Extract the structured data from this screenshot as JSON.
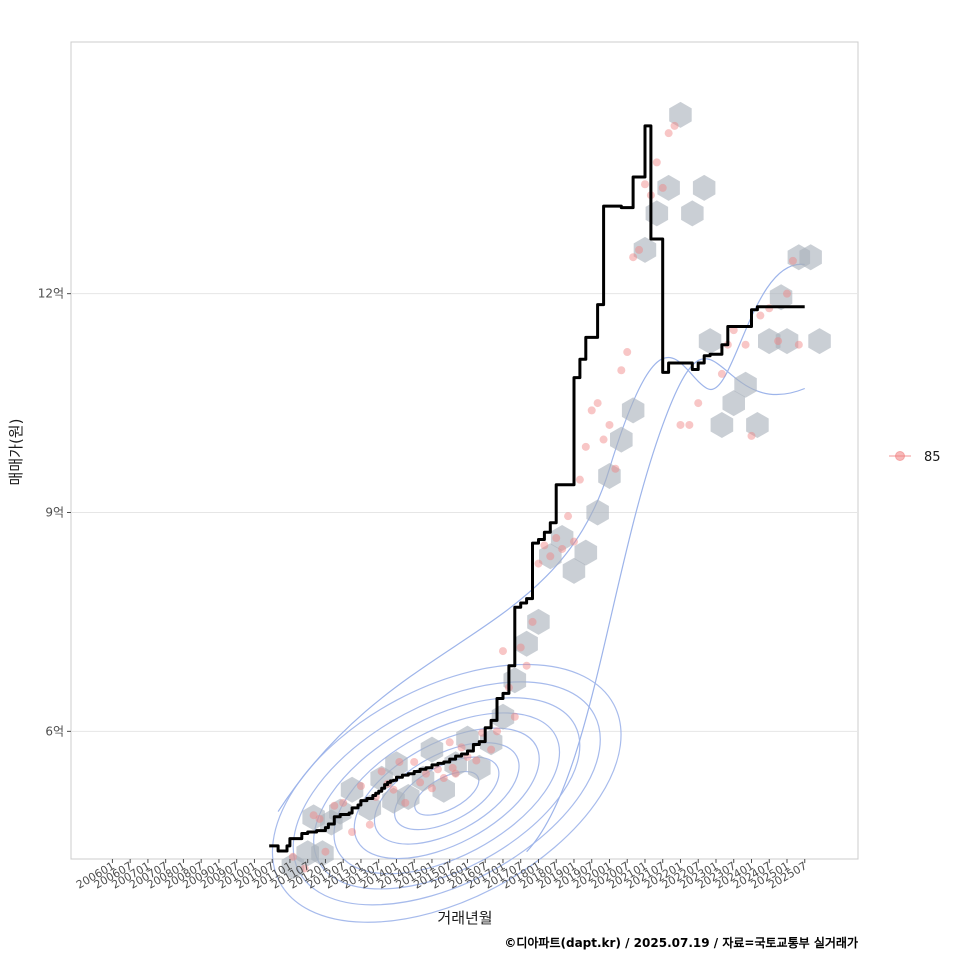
{
  "chart_data": {
    "type": "line",
    "xlabel": "거래년월",
    "ylabel": "매매가(원)",
    "caption": "©디아파트(dapt.kr) / 2025.07.19 / 자료=국토교통부 실거래가",
    "x_ticks": [
      "200601",
      "200607",
      "200701",
      "200707",
      "200801",
      "200807",
      "200901",
      "200907",
      "201001",
      "201007",
      "201101",
      "201107",
      "201201",
      "201207",
      "201301",
      "201307",
      "201401",
      "201407",
      "201501",
      "201507",
      "201601",
      "201607",
      "201701",
      "201707",
      "201801",
      "201807",
      "201901",
      "201907",
      "202001",
      "202007",
      "202101",
      "202107",
      "202201",
      "202207",
      "202301",
      "202307",
      "202401",
      "202407",
      "202501",
      "202507"
    ],
    "y_ticks": [
      {
        "value": 6.0,
        "label": "6억"
      },
      {
        "value": 9.0,
        "label": "9억"
      },
      {
        "value": 12.0,
        "label": "12억"
      }
    ],
    "xlim": [
      "200411",
      "202701"
    ],
    "ylim": [
      4.25,
      15.45
    ],
    "grid": true,
    "legend": {
      "position": "right",
      "entries": [
        {
          "label": "85",
          "color": "#f08080"
        }
      ]
    },
    "colors": {
      "line": "#000000",
      "points": "#f08080",
      "hex": "#a9b1bb",
      "contour": "#9db4ea",
      "grid": "#e6e6e6",
      "panel_border": "#cccccc"
    },
    "series": [
      {
        "kind": "moving-average-line",
        "x": [
          "201006",
          "201007",
          "201008",
          "201009",
          "201010",
          "201011",
          "201012",
          "201101",
          "201102",
          "201103",
          "201104",
          "201105",
          "201106",
          "201107",
          "201108",
          "201109",
          "201110",
          "201111",
          "201112",
          "201201",
          "201202",
          "201203",
          "201204",
          "201205",
          "201206",
          "201207",
          "201208",
          "201209",
          "201210",
          "201211",
          "201212",
          "201301",
          "201302",
          "201303",
          "201304",
          "201305",
          "201306",
          "201307",
          "201308",
          "201309",
          "201310",
          "201311",
          "201312",
          "201401",
          "201403",
          "201405",
          "201407",
          "201409",
          "201411",
          "201501",
          "201503",
          "201505",
          "201507",
          "201509",
          "201511",
          "201601",
          "201603",
          "201605",
          "201607",
          "201609",
          "201611",
          "201701",
          "201703",
          "201705",
          "201707",
          "201709",
          "201711",
          "201801",
          "201803",
          "201805",
          "201807",
          "201809",
          "201811",
          "201901",
          "201903",
          "201905",
          "201907",
          "201909",
          "201911",
          "202001",
          "202003",
          "202005",
          "202007",
          "202009",
          "202011",
          "202101",
          "202103",
          "202105",
          "202107",
          "202109",
          "202111",
          "202201",
          "202203",
          "202205",
          "202207",
          "202209",
          "202211",
          "202301",
          "202303",
          "202305",
          "202307",
          "202309",
          "202311",
          "202401",
          "202403",
          "202405",
          "202407",
          "202409",
          "202411",
          "202501",
          "202503",
          "202505",
          "202507"
        ],
        "values": [
          4.43,
          4.43,
          4.43,
          4.36,
          4.36,
          4.36,
          4.43,
          4.53,
          4.53,
          4.53,
          4.53,
          4.6,
          4.6,
          4.62,
          4.62,
          4.62,
          4.64,
          4.64,
          4.64,
          4.68,
          4.73,
          4.73,
          4.83,
          4.83,
          4.86,
          4.86,
          4.86,
          4.88,
          4.95,
          4.95,
          4.99,
          5.05,
          5.05,
          5.08,
          5.08,
          5.12,
          5.15,
          5.18,
          5.22,
          5.27,
          5.3,
          5.32,
          5.33,
          5.37,
          5.4,
          5.42,
          5.45,
          5.48,
          5.5,
          5.54,
          5.56,
          5.58,
          5.62,
          5.66,
          5.69,
          5.73,
          5.82,
          5.86,
          6.05,
          6.15,
          6.45,
          6.52,
          6.9,
          7.7,
          7.76,
          7.82,
          8.58,
          8.63,
          8.73,
          8.86,
          9.38,
          9.38,
          9.38,
          10.85,
          11.1,
          11.4,
          11.4,
          11.85,
          13.2,
          13.2,
          13.2,
          13.18,
          13.18,
          13.6,
          13.6,
          14.3,
          12.75,
          12.75,
          10.92,
          11.05,
          11.05,
          11.05,
          11.05,
          10.96,
          11.05,
          11.15,
          11.17,
          11.17,
          11.3,
          11.55,
          11.55,
          11.55,
          11.55,
          11.78,
          11.82,
          11.82,
          11.82,
          11.82,
          11.82,
          11.82,
          11.82,
          11.82,
          11.82
        ]
      },
      {
        "kind": "transactions",
        "name": "85",
        "x": [
          "201102",
          "201106",
          "201109",
          "201111",
          "201201",
          "201204",
          "201207",
          "201210",
          "201301",
          "201304",
          "201306",
          "201308",
          "201310",
          "201312",
          "201402",
          "201404",
          "201407",
          "201409",
          "201411",
          "201501",
          "201503",
          "201505",
          "201507",
          "201508",
          "201509",
          "201511",
          "201601",
          "201604",
          "201606",
          "201609",
          "201611",
          "201701",
          "201703",
          "201705",
          "201707",
          "201709",
          "201711",
          "201801",
          "201803",
          "201805",
          "201807",
          "201809",
          "201811",
          "201901",
          "201903",
          "201905",
          "201907",
          "201909",
          "201911",
          "202001",
          "202003",
          "202005",
          "202007",
          "202009",
          "202011",
          "202101",
          "202103",
          "202105",
          "202107",
          "202109",
          "202111",
          "202201",
          "202204",
          "202207",
          "202303",
          "202305",
          "202307",
          "202311",
          "202401",
          "202404",
          "202407",
          "202410",
          "202501",
          "202503",
          "202505"
        ],
        "values": [
          4.28,
          4.12,
          4.85,
          4.8,
          4.35,
          4.98,
          5.02,
          4.62,
          5.25,
          4.72,
          5.1,
          5.45,
          5.28,
          5.2,
          5.58,
          5.02,
          5.58,
          5.3,
          5.42,
          5.22,
          5.48,
          5.36,
          5.85,
          5.5,
          5.42,
          5.78,
          5.65,
          5.6,
          5.98,
          5.75,
          6.0,
          7.1,
          6.6,
          6.2,
          7.15,
          6.9,
          7.5,
          8.3,
          8.55,
          8.4,
          8.65,
          8.5,
          8.95,
          8.6,
          9.45,
          9.9,
          10.4,
          10.5,
          10.0,
          10.2,
          9.6,
          10.95,
          11.2,
          12.5,
          12.6,
          13.5,
          13.35,
          13.8,
          13.45,
          14.2,
          14.3,
          10.2,
          10.2,
          10.5,
          10.9,
          11.3,
          11.5,
          11.3,
          10.05,
          11.7,
          11.8,
          11.35,
          12.0,
          12.45,
          11.3
        ]
      },
      {
        "kind": "hexbin-cells",
        "x": [
          "201102",
          "201107",
          "201112",
          "201109",
          "201203",
          "201206",
          "201210",
          "201304",
          "201308",
          "201312",
          "201401",
          "201405",
          "201410",
          "201501",
          "201505",
          "201509",
          "201601",
          "201605",
          "201609",
          "201701",
          "201705",
          "201709",
          "201801",
          "201805",
          "201809",
          "201901",
          "201905",
          "201909",
          "202001",
          "202005",
          "202009",
          "202101",
          "202105",
          "202109",
          "202201",
          "202205",
          "202209",
          "202211",
          "202303",
          "202307",
          "202311",
          "202403",
          "202407",
          "202411",
          "202501",
          "202505",
          "202509",
          "202512"
        ],
        "values": [
          4.15,
          4.33,
          4.33,
          4.82,
          4.75,
          4.9,
          5.2,
          4.95,
          5.35,
          5.05,
          5.55,
          5.1,
          5.35,
          5.75,
          5.2,
          5.55,
          5.9,
          5.5,
          5.85,
          6.2,
          6.7,
          7.2,
          7.5,
          8.4,
          8.65,
          8.2,
          8.45,
          9.0,
          9.5,
          10.0,
          10.4,
          12.6,
          13.1,
          13.45,
          14.45,
          13.1,
          13.45,
          11.35,
          10.2,
          10.5,
          10.75,
          10.2,
          11.35,
          11.95,
          11.35,
          12.5,
          12.5,
          11.35
        ]
      }
    ]
  }
}
